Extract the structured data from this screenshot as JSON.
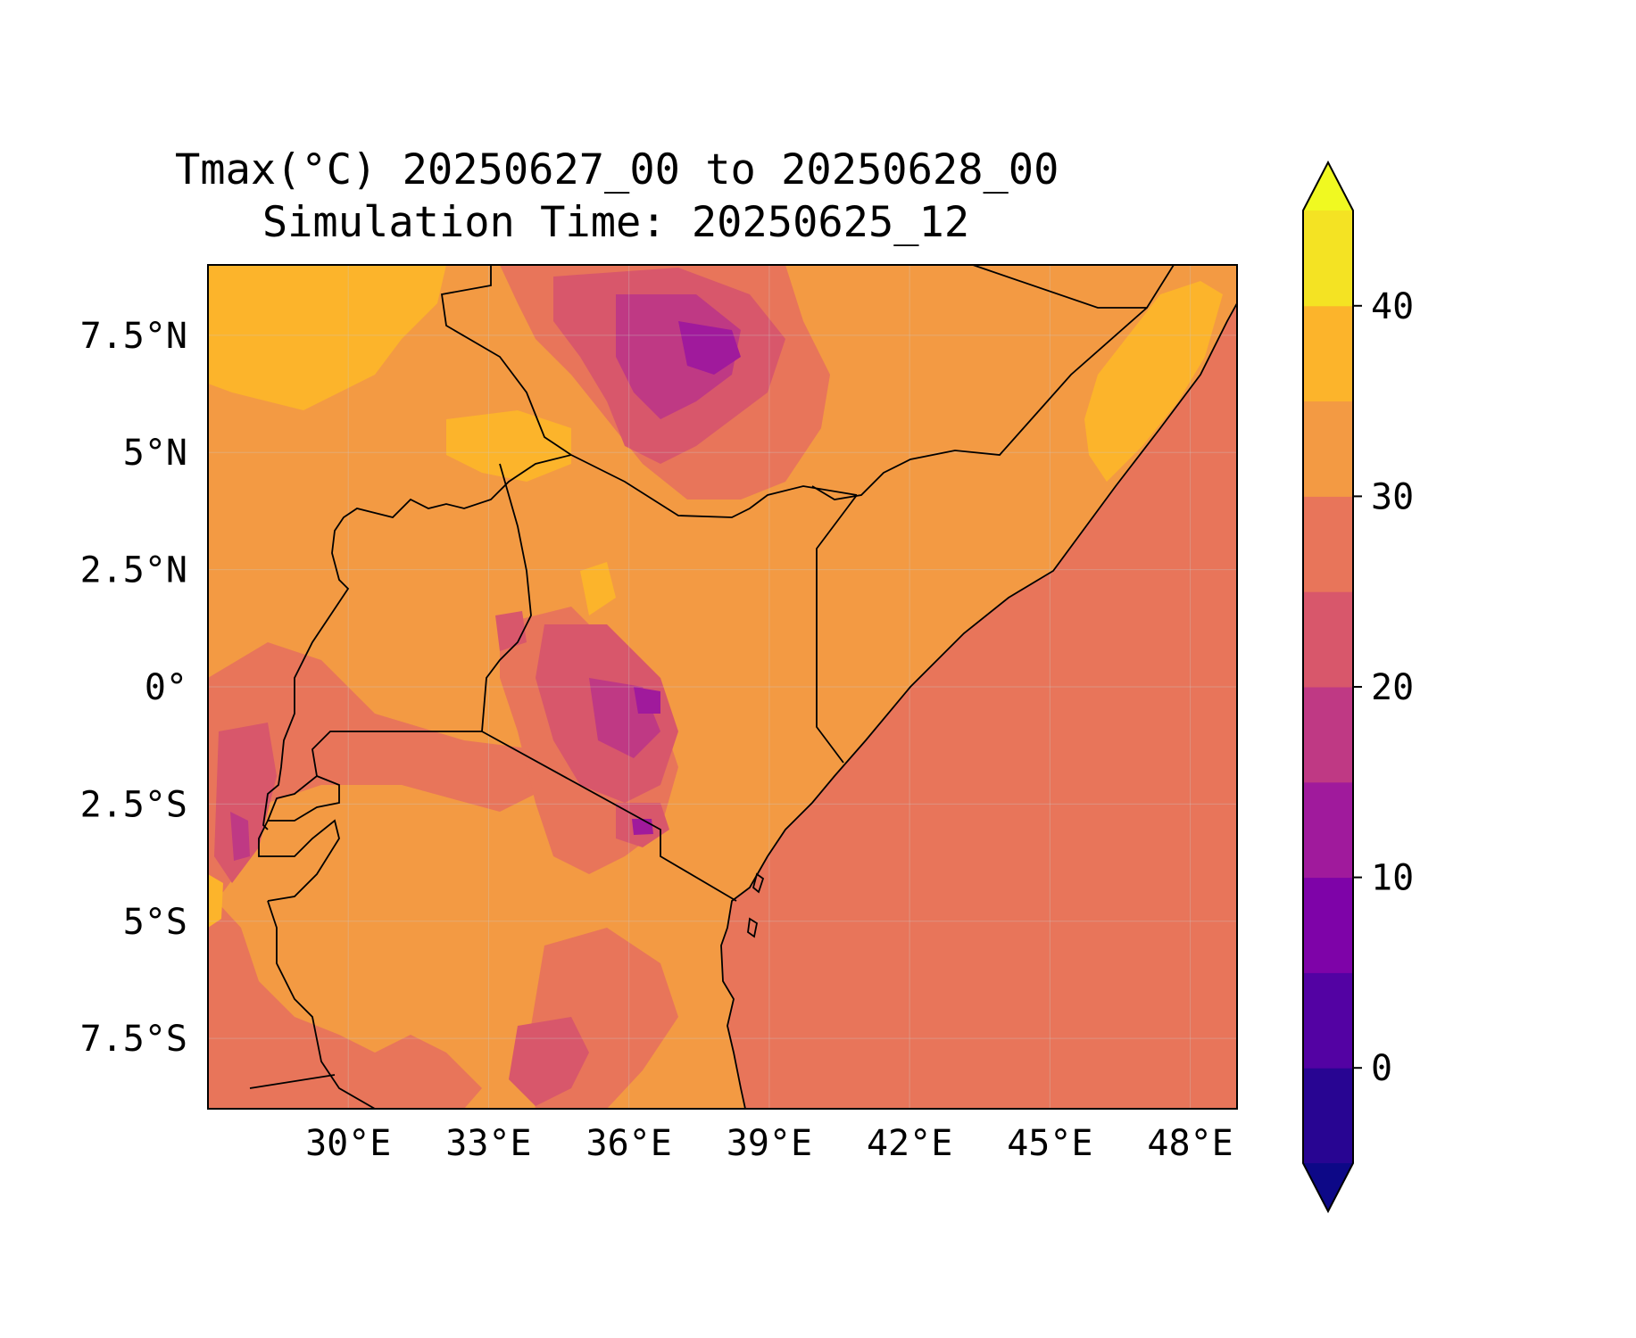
{
  "title": {
    "line1": "Tmax(°C) 20250627_00 to 20250628_00",
    "line2": "Simulation Time: 20250625_12"
  },
  "map": {
    "lon_range": [
      27.0,
      49.0
    ],
    "lat_range": [
      -9.0,
      9.0
    ],
    "lon_ticks": [
      {
        "value": 30,
        "label": "30°E"
      },
      {
        "value": 33,
        "label": "33°E"
      },
      {
        "value": 36,
        "label": "36°E"
      },
      {
        "value": 39,
        "label": "39°E"
      },
      {
        "value": 42,
        "label": "42°E"
      },
      {
        "value": 45,
        "label": "45°E"
      },
      {
        "value": 48,
        "label": "48°E"
      }
    ],
    "lat_ticks": [
      {
        "value": 7.5,
        "label": "7.5°N"
      },
      {
        "value": 5,
        "label": "5°N"
      },
      {
        "value": 2.5,
        "label": "2.5°N"
      },
      {
        "value": 0,
        "label": "0°"
      },
      {
        "value": -2.5,
        "label": "2.5°S"
      },
      {
        "value": -5,
        "label": "5°S"
      },
      {
        "value": -7.5,
        "label": "7.5°S"
      }
    ],
    "grid": true,
    "ocean_color": "#e8755a",
    "land_base_color": "#f39a43"
  },
  "colorbar": {
    "levels": [
      -5,
      0,
      5,
      10,
      15,
      20,
      25,
      30,
      35,
      40,
      45
    ],
    "extend": "both",
    "under_color": "#0d0887",
    "over_color": "#f0f921",
    "colors": [
      "#280592",
      "#5302a3",
      "#7e03a8",
      "#a01a9c",
      "#bf3984",
      "#d8576b",
      "#e8755a",
      "#f39a43",
      "#fcb42b",
      "#f4e323"
    ],
    "ticks": [
      {
        "value": 0,
        "label": "0"
      },
      {
        "value": 10,
        "label": "10"
      },
      {
        "value": 20,
        "label": "20"
      },
      {
        "value": 30,
        "label": "30"
      },
      {
        "value": 40,
        "label": "40"
      }
    ]
  }
}
